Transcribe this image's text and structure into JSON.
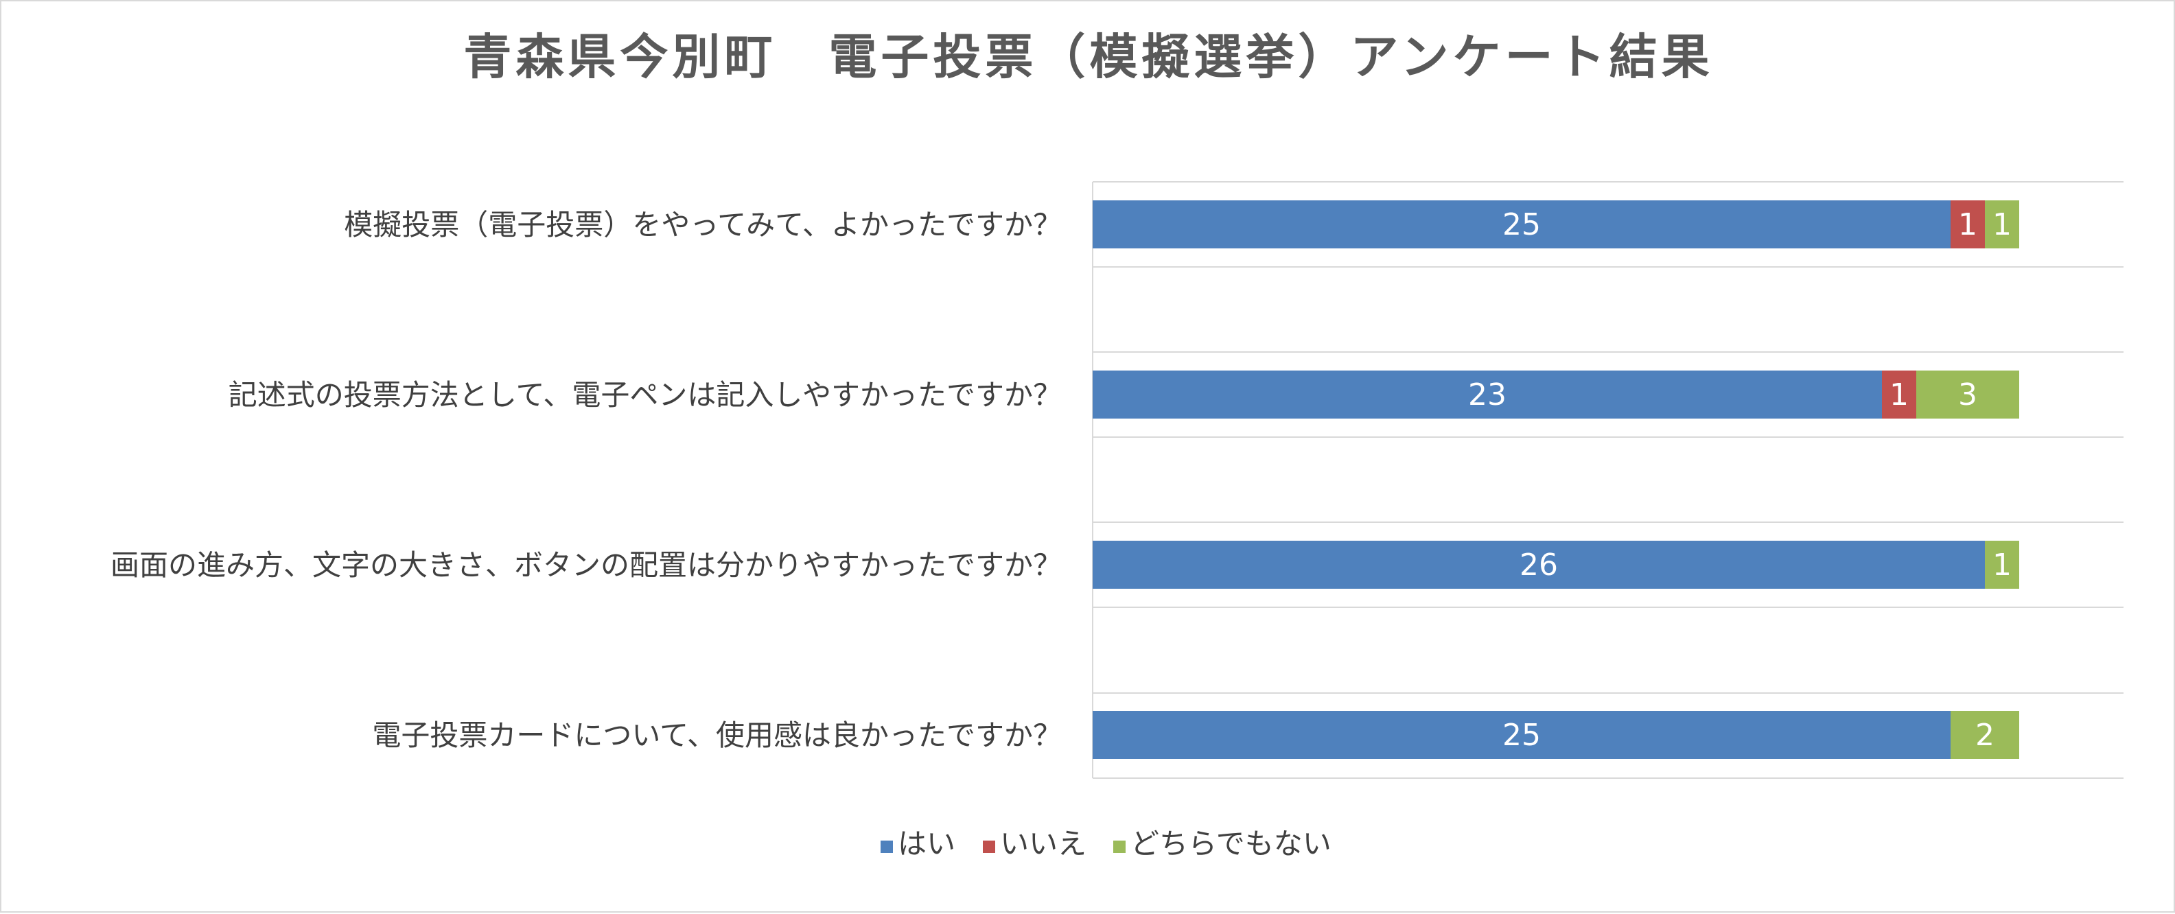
{
  "chart_data": {
    "type": "bar",
    "orientation": "horizontal",
    "stacked": true,
    "title": "青森県今別町　電子投票（模擬選挙）アンケート結果",
    "categories": [
      "模擬投票（電子投票）をやってみて、よかったですか？",
      "記述式の投票方法として、電子ペンは記入しやすかったですか？",
      "画面の進み方、文字の大きさ、ボタンの配置は分かりやすかったですか？",
      "電子投票カードについて、使用感は良かったですか？"
    ],
    "series": [
      {
        "name": "はい",
        "color": "#4f81bd",
        "values": [
          25,
          23,
          26,
          25
        ]
      },
      {
        "name": "いいえ",
        "color": "#c0504d",
        "values": [
          1,
          1,
          0,
          0
        ]
      },
      {
        "name": "どちらでもない",
        "color": "#9bbb59",
        "values": [
          1,
          3,
          1,
          2
        ]
      }
    ],
    "xlim": [
      0,
      30
    ],
    "grid": true,
    "legend_position": "bottom"
  }
}
